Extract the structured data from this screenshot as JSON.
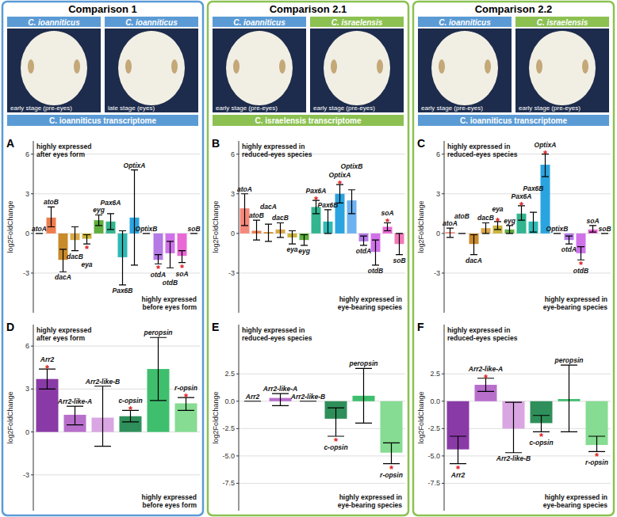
{
  "panels": [
    {
      "title": "Comparison 1",
      "color": "#5b9bd5",
      "species": [
        "C. ioanniticus",
        "C. ioanniticus"
      ],
      "species_colors": [
        "#5b9bd5",
        "#5b9bd5"
      ],
      "stages": [
        "early stage (pre-eyes)",
        "late stage (eyes)"
      ],
      "transcriptome": "C. ioanniticus transcriptome",
      "transcriptome_color": "#5b9bd5"
    },
    {
      "title": "Comparison 2.1",
      "color": "#8cc152",
      "species": [
        "C. ioanniticus",
        "C. israelensis"
      ],
      "species_colors": [
        "#5b9bd5",
        "#8cc152"
      ],
      "stages": [
        "early stage (pre-eyes)",
        "early stage (pre-eyes)"
      ],
      "transcriptome": "C. israelensis transcriptome",
      "transcriptome_color": "#8cc152"
    },
    {
      "title": "Comparison 2.2",
      "color": "#8cc152",
      "species": [
        "C. ioanniticus",
        "C. israelensis"
      ],
      "species_colors": [
        "#5b9bd5",
        "#8cc152"
      ],
      "stages": [
        "early stage (pre-eyes)",
        "early stage (pre-eyes)"
      ],
      "transcriptome": "C. ioanniticus transcriptome",
      "transcriptome_color": "#5b9bd5"
    }
  ],
  "chart_data": [
    {
      "type": "bar",
      "label": "A",
      "ylabel": "log2FoldChange",
      "grid": true,
      "ylim": [
        -6,
        7
      ],
      "yticks": [
        -3,
        0,
        3,
        6
      ],
      "annotations": [
        [
          "highly expressed",
          "after eyes form"
        ],
        [
          "highly expressed",
          "before eyes form"
        ]
      ],
      "categories": [
        "atoA",
        "atoB",
        "dacA",
        "dacB",
        "eya",
        "eyg",
        "Pax6A",
        "Pax6B",
        "OptixA",
        "OptixB",
        "otdA",
        "otdB",
        "soA",
        "soB"
      ],
      "series": [
        {
          "values": [
            0,
            1.2,
            -2.0,
            -0.5,
            -0.4,
            1.0,
            0.9,
            -1.8,
            1.2,
            0,
            -2.0,
            -1.5,
            -1.7,
            0
          ],
          "colors": [
            "#f4897b",
            "#ee7d4d",
            "#c98a2a",
            "#dba84a",
            "#c9b43a",
            "#5fae3e",
            "#33b58f",
            "#2fb9b5",
            "#2aa4e0",
            "#6fb2f2",
            "#b47ae6",
            "#cf72ea",
            "#e868d6",
            "#f27ab8"
          ]
        }
      ],
      "error_low": [
        0,
        0.5,
        -2.9,
        -1.3,
        -0.8,
        0.6,
        0.3,
        -3.9,
        -2.4,
        0,
        -2.3,
        -2.6,
        -2.2,
        0
      ],
      "error_high": [
        0,
        2.0,
        -1.2,
        0.5,
        -0.1,
        1.4,
        1.5,
        0.2,
        4.8,
        0,
        -1.6,
        -0.6,
        -1.3,
        0
      ],
      "significant": [
        false,
        false,
        false,
        false,
        true,
        false,
        false,
        false,
        false,
        false,
        true,
        false,
        true,
        false
      ],
      "significance_label": "*"
    },
    {
      "type": "bar",
      "label": "B",
      "ylabel": "log2FoldChange",
      "grid": true,
      "ylim": [
        -6,
        7
      ],
      "yticks": [
        -3,
        0,
        3,
        6
      ],
      "annotations": [
        [
          "highly expressed in",
          "reduced-eyes species"
        ],
        [
          "highly expressed in",
          "eye-bearing species"
        ]
      ],
      "categories": [
        "atoA",
        "atoB",
        "dacA",
        "dacB",
        "eya",
        "eyg",
        "Pax6A",
        "Pax6B",
        "OptixA",
        "OptixB",
        "otdA",
        "otdB",
        "soA",
        "soB"
      ],
      "series": [
        {
          "values": [
            1.9,
            0.2,
            0.1,
            0.3,
            -0.3,
            -0.5,
            2.0,
            0.9,
            3.0,
            2.5,
            -0.6,
            -1.4,
            0.5,
            -0.8
          ],
          "colors": [
            "#f4897b",
            "#ee7d4d",
            "#c98a2a",
            "#dba84a",
            "#c9b43a",
            "#5fae3e",
            "#33b58f",
            "#2fb9b5",
            "#2aa4e0",
            "#6fb2f2",
            "#b47ae6",
            "#cf72ea",
            "#e868d6",
            "#f27ab8"
          ]
        }
      ],
      "error_low": [
        0.6,
        -0.5,
        -0.6,
        -0.3,
        -0.8,
        -0.9,
        1.5,
        0,
        2.3,
        1.5,
        -0.9,
        -2.4,
        0.2,
        -1.6
      ],
      "error_high": [
        3.0,
        1.0,
        0.7,
        0.8,
        0.2,
        -0.1,
        2.5,
        1.8,
        3.7,
        3.3,
        -0.2,
        -0.5,
        0.8,
        0
      ],
      "significant": [
        false,
        false,
        false,
        false,
        false,
        false,
        true,
        false,
        true,
        false,
        false,
        false,
        true,
        false
      ],
      "significance_label": "*"
    },
    {
      "type": "bar",
      "label": "C",
      "ylabel": "log2FoldChange",
      "grid": true,
      "ylim": [
        -6,
        7
      ],
      "yticks": [
        -3,
        0,
        3,
        6
      ],
      "annotations": [
        [
          "highly expressed in",
          "reduced-eyes species"
        ],
        [
          "highly expressed in",
          "eye-bearing species"
        ]
      ],
      "categories": [
        "atoA",
        "atoB",
        "dacA",
        "dacB",
        "eya",
        "eyg",
        "Pax6A",
        "Pax6B",
        "OptixA",
        "OptixB",
        "otdA",
        "otdB",
        "soA",
        "soB"
      ],
      "series": [
        {
          "values": [
            0.1,
            0,
            -0.8,
            0.4,
            0.6,
            0.3,
            1.5,
            0.9,
            5.2,
            0,
            -0.5,
            -1.5,
            0.3,
            0
          ],
          "colors": [
            "#f4897b",
            "#ee7d4d",
            "#c98a2a",
            "#dba84a",
            "#c9b43a",
            "#5fae3e",
            "#33b58f",
            "#2fb9b5",
            "#2aa4e0",
            "#6fb2f2",
            "#b47ae6",
            "#cf72ea",
            "#e868d6",
            "#f27ab8"
          ]
        }
      ],
      "error_low": [
        -0.3,
        0,
        -1.6,
        0,
        0.3,
        0,
        1.0,
        0.1,
        4.3,
        0,
        -0.8,
        -2.0,
        0.1,
        0
      ],
      "error_high": [
        0.4,
        0,
        -0.1,
        0.8,
        0.9,
        0.6,
        2.1,
        1.6,
        6.0,
        0,
        -0.2,
        -1.0,
        0.6,
        0
      ],
      "significant": [
        false,
        false,
        false,
        false,
        true,
        false,
        true,
        false,
        true,
        false,
        false,
        true,
        false,
        false
      ],
      "significance_label": "*"
    },
    {
      "type": "bar",
      "label": "D",
      "ylabel": "log2FoldChange",
      "grid": true,
      "ylim": [
        -5.5,
        7.5
      ],
      "yticks": [
        -3,
        0,
        3,
        6
      ],
      "annotations": [
        [
          "highly expressed",
          "after eyes form"
        ],
        [
          "highly expressed",
          "before eyes form"
        ]
      ],
      "categories": [
        "Arr2",
        "Arr2-like-A",
        "Arr2-like-B",
        "c-opsin",
        "peropsin",
        "r-opsin"
      ],
      "series": [
        {
          "values": [
            3.7,
            1.2,
            1.0,
            1.1,
            4.4,
            2.0
          ],
          "colors": [
            "#8a3aa6",
            "#b86fcc",
            "#d9a6e3",
            "#2f8f5a",
            "#3fbf6e",
            "#86dc92"
          ]
        }
      ],
      "error_low": [
        3.0,
        0.5,
        -1.0,
        0.7,
        2.2,
        1.5
      ],
      "error_high": [
        4.4,
        1.8,
        3.2,
        1.5,
        6.6,
        2.4
      ],
      "significant": [
        true,
        false,
        false,
        true,
        false,
        true
      ],
      "significance_label": "*"
    },
    {
      "type": "bar",
      "label": "E",
      "ylabel": "log2FoldChange",
      "grid": true,
      "ylim": [
        -10,
        7
      ],
      "yticks": [
        -7.5,
        {
          "value": -5,
          "label": "-5.0"
        },
        -2.5,
        {
          "value": 0,
          "label": "0.0"
        },
        2.5
      ],
      "annotations": [
        [
          "highly expressed in",
          "reduced-eyes species"
        ],
        [
          "highly expressed in",
          "eye-bearing species"
        ]
      ],
      "categories": [
        "Arr2",
        "Arr2-like-A",
        "Arr2-like-B",
        "c-opsin",
        "peropsin",
        "r-opsin"
      ],
      "series": [
        {
          "values": [
            0,
            0.3,
            0,
            -1.6,
            0.5,
            -4.7
          ],
          "colors": [
            "#8a3aa6",
            "#b86fcc",
            "#d9a6e3",
            "#2f8f5a",
            "#3fbf6e",
            "#86dc92"
          ]
        }
      ],
      "error_low": [
        0,
        -0.4,
        0,
        -3.2,
        -2.0,
        -5.7
      ],
      "error_high": [
        0,
        0.7,
        0,
        -0.6,
        3.0,
        -3.8
      ],
      "significant": [
        false,
        false,
        false,
        true,
        false,
        true
      ],
      "significance_label": "*"
    },
    {
      "type": "bar",
      "label": "F",
      "ylabel": "log2FoldChange",
      "grid": true,
      "ylim": [
        -10,
        7
      ],
      "yticks": [
        -7.5,
        {
          "value": -5,
          "label": "-5.0"
        },
        -2.5,
        {
          "value": 0,
          "label": "0.0"
        },
        2.5
      ],
      "annotations": [
        [
          "highly expressed in",
          "reduced-eyes species"
        ],
        [
          "highly expressed in",
          "eye-bearing species"
        ]
      ],
      "categories": [
        "Arr2",
        "Arr2-like-A",
        "Arr2-like-B",
        "c-opsin",
        "peropsin",
        "r-opsin"
      ],
      "series": [
        {
          "values": [
            -4.4,
            1.5,
            -2.5,
            -2.0,
            0.2,
            -4.0
          ],
          "colors": [
            "#8a3aa6",
            "#b86fcc",
            "#d9a6e3",
            "#2f8f5a",
            "#3fbf6e",
            "#86dc92"
          ]
        }
      ],
      "error_low": [
        -5.7,
        0.9,
        -4.7,
        -2.8,
        -2.8,
        -4.6
      ],
      "error_high": [
        -3.2,
        2.1,
        -0.1,
        -1.3,
        3.3,
        -3.2
      ],
      "significant": [
        true,
        true,
        false,
        true,
        false,
        true
      ],
      "significance_label": "*"
    }
  ]
}
